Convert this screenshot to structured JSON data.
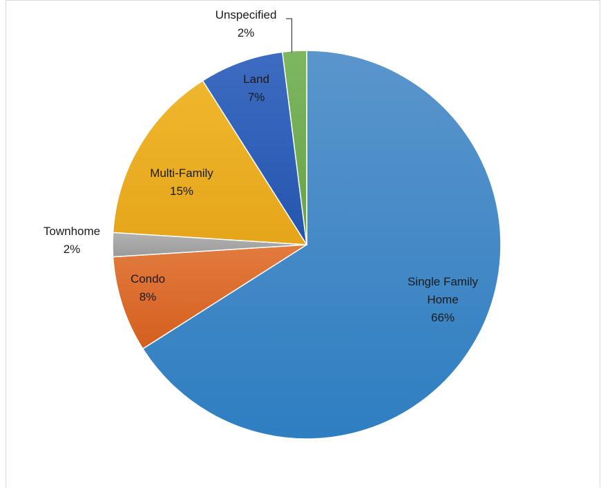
{
  "chart_data": {
    "type": "pie",
    "title": "",
    "slices": [
      {
        "label_lines": [
          "Single Family",
          "Home"
        ],
        "pct_label": "66%",
        "value": 66,
        "color": "#2e7ec1",
        "light": "#5b95cc"
      },
      {
        "label_lines": [
          "Condo"
        ],
        "pct_label": "8%",
        "value": 8,
        "color": "#d45f1f",
        "light": "#e27b3e"
      },
      {
        "label_lines": [
          "Townhome"
        ],
        "pct_label": "2%",
        "value": 2,
        "color": "#9a9a9a",
        "light": "#b2b2b2"
      },
      {
        "label_lines": [
          "Multi-Family"
        ],
        "pct_label": "15%",
        "value": 15,
        "color": "#e5a51a",
        "light": "#efb72e"
      },
      {
        "label_lines": [
          "Land"
        ],
        "pct_label": "7%",
        "value": 7,
        "color": "#2455ad",
        "light": "#3d6cc2"
      },
      {
        "label_lines": [
          "Unspecified"
        ],
        "pct_label": "2%",
        "value": 2,
        "color": "#66a24a",
        "light": "#7db760"
      }
    ]
  }
}
